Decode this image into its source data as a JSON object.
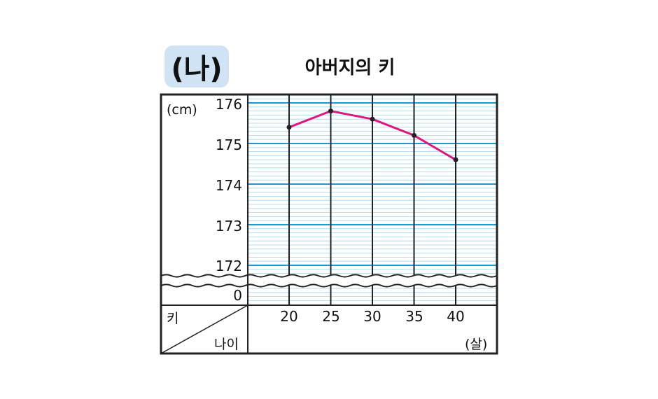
{
  "badge": "(나)",
  "chart_data": {
    "type": "line",
    "title": "아버지의 키",
    "y_unit": "(cm)",
    "x_unit": "(살)",
    "row_header": "키",
    "col_header": "나이",
    "x": [
      20,
      25,
      30,
      35,
      40
    ],
    "y_ticks": [
      176,
      175,
      174,
      173,
      172
    ],
    "y_zero_label": "0",
    "ylim": [
      172,
      176
    ],
    "axis_break": true,
    "series": [
      {
        "values": [
          175.4,
          175.8,
          175.6,
          175.2,
          174.6
        ]
      }
    ],
    "colors": {
      "line": "#e0157f",
      "major_grid": "#1a9bd7",
      "minor_grid": "#9fd3ee",
      "frame": "#222222"
    }
  }
}
